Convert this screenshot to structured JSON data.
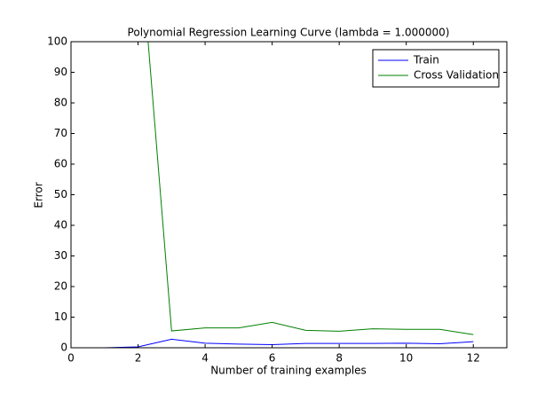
{
  "chart_data": {
    "type": "line",
    "title": "Polynomial Regression Learning Curve (lambda = 1.000000)",
    "xlabel": "Number of training examples",
    "ylabel": "Error",
    "x": [
      1,
      2,
      3,
      4,
      5,
      6,
      7,
      8,
      9,
      10,
      11,
      12
    ],
    "series": [
      {
        "name": "Train",
        "color": "#0000ff",
        "values": [
          0,
          0.3,
          2.8,
          1.5,
          1.2,
          1.0,
          1.4,
          1.4,
          1.4,
          1.5,
          1.3,
          2.0
        ]
      },
      {
        "name": "Cross Validation",
        "color": "#008000",
        "values": [
          null,
          140.5,
          5.5,
          6.5,
          6.5,
          8.3,
          5.7,
          5.4,
          6.2,
          6.0,
          6.0,
          4.3
        ]
      }
    ],
    "xlim": [
      0,
      13
    ],
    "ylim": [
      0,
      100
    ],
    "xticks": [
      0,
      2,
      4,
      6,
      8,
      10,
      12
    ],
    "yticks": [
      0,
      10,
      20,
      30,
      40,
      50,
      60,
      70,
      80,
      90,
      100
    ],
    "legend": "upper right"
  }
}
